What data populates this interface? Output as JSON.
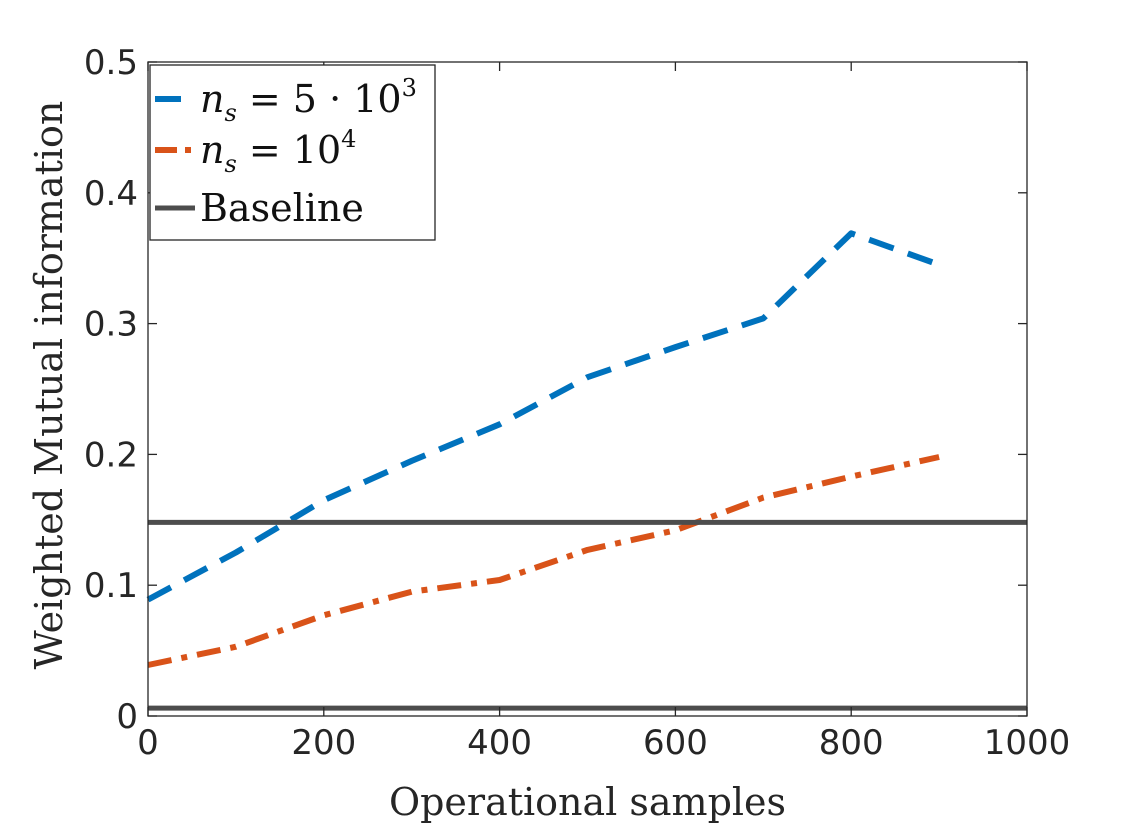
{
  "chart_data": {
    "type": "line",
    "title": "",
    "xlabel": "Operational samples",
    "ylabel": "Weighted Mutual information",
    "xlim": [
      0,
      1000
    ],
    "ylim": [
      0,
      0.5
    ],
    "xticks": [
      0,
      200,
      400,
      600,
      800,
      1000
    ],
    "xtick_labels": [
      "0",
      "200",
      "400",
      "600",
      "800",
      "1000"
    ],
    "yticks": [
      0,
      0.1,
      0.2,
      0.3,
      0.4,
      0.5
    ],
    "ytick_labels": [
      "0",
      "0.1",
      "0.2",
      "0.3",
      "0.4",
      "0.5"
    ],
    "grid": false,
    "legend_position": "top-left",
    "series": [
      {
        "name": "n_s = 5·10^3",
        "legend": {
          "var": "n",
          "sub": "s",
          "eq": " = 5 · 10",
          "sup": "3"
        },
        "style": "dashed",
        "color": "#0072BD",
        "x": [
          0,
          100,
          200,
          300,
          400,
          500,
          600,
          700,
          800,
          900
        ],
        "y": [
          0.089,
          0.125,
          0.165,
          0.195,
          0.223,
          0.259,
          0.282,
          0.304,
          0.369,
          0.345
        ]
      },
      {
        "name": "n_s = 10^4",
        "legend": {
          "var": "n",
          "sub": "s",
          "eq": " = 10",
          "sup": "4"
        },
        "style": "dashdot",
        "color": "#D95319",
        "x": [
          0,
          100,
          200,
          300,
          400,
          500,
          600,
          700,
          800,
          900
        ],
        "y": [
          0.039,
          0.053,
          0.077,
          0.095,
          0.104,
          0.127,
          0.142,
          0.167,
          0.183,
          0.198
        ]
      },
      {
        "name": "Baseline",
        "legend": {
          "text": "Baseline"
        },
        "style": "solid",
        "color": "#4D4D4D",
        "lines_y": [
          0.148,
          0.006
        ]
      }
    ]
  }
}
